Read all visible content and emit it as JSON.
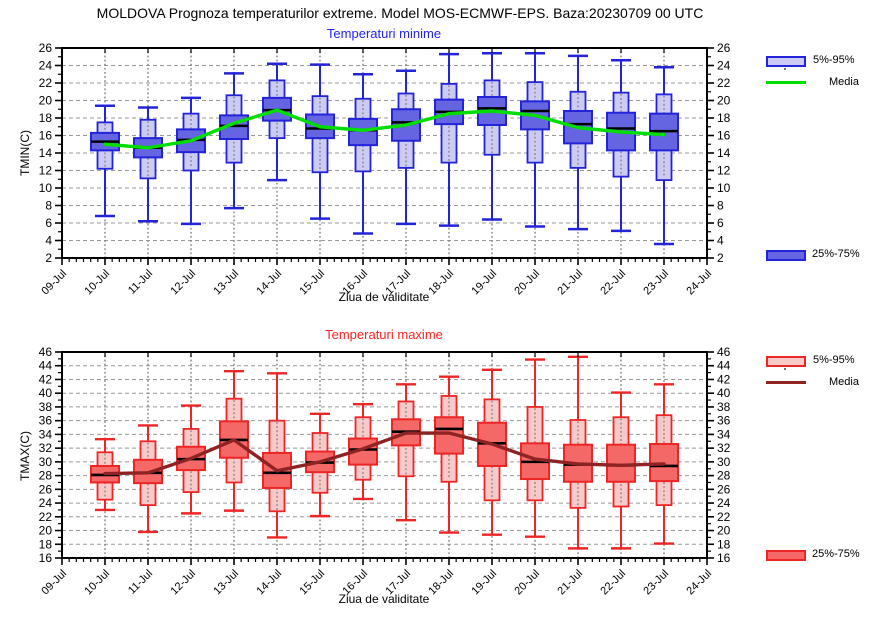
{
  "header": {
    "title": "MOLDOVA  Prognoza temperaturilor extreme.  Model MOS-ECMWF-EPS. Baza:20230709 00 UTC"
  },
  "legend": {
    "p5_95": "5%-95%",
    "media": "Media",
    "p25_75": "25%-75%"
  },
  "chart_data": [
    {
      "type": "boxplot",
      "title": "Temperaturi minime",
      "ylabel": "TMIN(C)",
      "xlabel": "Ziua de validitate",
      "ylim": [
        2,
        26
      ],
      "ytick_step": 2,
      "grid": true,
      "legend_position": "right",
      "legend_entries": [
        "5%-95%",
        "Media",
        "25%-75%"
      ],
      "x_categories": [
        "09-Jul",
        "10-Jul",
        "11-Jul",
        "12-Jul",
        "13-Jul",
        "14-Jul",
        "15-Jul",
        "16-Jul",
        "17-Jul",
        "18-Jul",
        "19-Jul",
        "20-Jul",
        "21-Jul",
        "22-Jul",
        "23-Jul",
        "24-Jul"
      ],
      "box_days": [
        "10-Jul",
        "11-Jul",
        "12-Jul",
        "13-Jul",
        "14-Jul",
        "15-Jul",
        "16-Jul",
        "17-Jul",
        "18-Jul",
        "19-Jul",
        "20-Jul",
        "21-Jul",
        "22-Jul",
        "23-Jul"
      ],
      "colors": {
        "title": "#2222ff",
        "box_border": "#2323d9",
        "box_fill_dark": "#6565e2",
        "box_fill_light": "#cbcbf3",
        "median": "#000000",
        "mean_line": "#00dd00"
      },
      "series": {
        "whisker_low": [
          6.8,
          6.2,
          5.9,
          7.7,
          10.9,
          6.5,
          4.8,
          5.9,
          5.7,
          6.4,
          5.6,
          5.3,
          5.1,
          3.6
        ],
        "p5": [
          12.2,
          11.1,
          12.0,
          12.9,
          15.7,
          11.8,
          11.9,
          12.3,
          12.9,
          13.8,
          12.9,
          12.3,
          11.3,
          10.9
        ],
        "p25": [
          14.3,
          13.5,
          14.1,
          15.6,
          17.7,
          15.7,
          14.9,
          15.4,
          17.3,
          17.2,
          16.7,
          15.1,
          14.3,
          14.3
        ],
        "median": [
          15.3,
          14.6,
          15.5,
          17.1,
          18.9,
          16.8,
          16.6,
          17.5,
          18.7,
          19.1,
          18.8,
          17.3,
          16.8,
          16.5
        ],
        "p75": [
          16.3,
          15.7,
          16.7,
          18.3,
          20.3,
          18.4,
          17.9,
          19.0,
          20.1,
          20.4,
          19.9,
          18.8,
          18.6,
          18.5
        ],
        "p95": [
          17.5,
          17.8,
          18.5,
          20.6,
          22.3,
          20.5,
          20.2,
          20.8,
          21.9,
          22.3,
          22.1,
          21.0,
          20.9,
          20.7
        ],
        "whisker_high": [
          19.4,
          19.2,
          20.3,
          23.1,
          24.2,
          24.1,
          23.0,
          23.4,
          25.3,
          25.4,
          25.4,
          25.1,
          24.6,
          23.8
        ],
        "mean": [
          15.0,
          14.6,
          15.4,
          17.4,
          18.9,
          17.0,
          16.6,
          17.2,
          18.5,
          18.8,
          18.3,
          16.9,
          16.4,
          16.1
        ]
      }
    },
    {
      "type": "boxplot",
      "title": "Temperaturi maxime",
      "ylabel": "TMAX(C)",
      "xlabel": "Ziua de validitate",
      "ylim": [
        16,
        46
      ],
      "ytick_step": 2,
      "grid": true,
      "legend_position": "right",
      "legend_entries": [
        "5%-95%",
        "Media",
        "25%-75%"
      ],
      "x_categories": [
        "09-Jul",
        "10-Jul",
        "11-Jul",
        "12-Jul",
        "13-Jul",
        "14-Jul",
        "15-Jul",
        "16-Jul",
        "17-Jul",
        "18-Jul",
        "19-Jul",
        "20-Jul",
        "21-Jul",
        "22-Jul",
        "23-Jul",
        "24-Jul"
      ],
      "box_days": [
        "10-Jul",
        "11-Jul",
        "12-Jul",
        "13-Jul",
        "14-Jul",
        "15-Jul",
        "16-Jul",
        "17-Jul",
        "18-Jul",
        "19-Jul",
        "20-Jul",
        "21-Jul",
        "22-Jul",
        "23-Jul"
      ],
      "colors": {
        "title": "#ff2222",
        "box_border": "#ee2525",
        "box_fill_dark": "#f46868",
        "box_fill_light": "#f8c9c9",
        "median": "#000000",
        "mean_line": "#8f2323"
      },
      "series": {
        "whisker_low": [
          23.0,
          19.8,
          22.5,
          22.9,
          19.0,
          22.1,
          24.6,
          21.5,
          19.7,
          19.4,
          19.1,
          17.4,
          17.4,
          18.1
        ],
        "p5": [
          24.5,
          23.7,
          25.6,
          27.0,
          22.8,
          25.5,
          27.4,
          27.9,
          27.1,
          24.4,
          24.4,
          23.3,
          23.5,
          23.7
        ],
        "p25": [
          27.0,
          26.9,
          28.8,
          30.6,
          26.2,
          28.5,
          29.6,
          32.4,
          31.2,
          29.4,
          27.5,
          27.1,
          27.1,
          27.2
        ],
        "median": [
          28.1,
          28.4,
          30.4,
          33.2,
          28.4,
          29.9,
          31.8,
          34.4,
          34.8,
          32.7,
          30.0,
          29.6,
          29.5,
          29.4
        ],
        "p75": [
          29.4,
          30.3,
          32.2,
          35.9,
          31.3,
          31.5,
          33.4,
          36.2,
          36.5,
          35.7,
          32.7,
          32.5,
          32.5,
          32.6
        ],
        "p95": [
          31.4,
          33.0,
          34.8,
          39.2,
          36.0,
          34.2,
          36.5,
          38.8,
          39.6,
          39.1,
          38.0,
          36.1,
          36.5,
          36.8
        ],
        "whisker_high": [
          33.3,
          35.3,
          38.2,
          43.2,
          42.9,
          37.0,
          38.4,
          41.3,
          42.4,
          43.4,
          44.9,
          45.3,
          40.1,
          41.3
        ],
        "mean": [
          28.3,
          28.4,
          30.5,
          33.2,
          28.7,
          30.0,
          31.9,
          34.2,
          34.2,
          32.6,
          30.4,
          29.7,
          29.5,
          29.7
        ]
      }
    }
  ]
}
